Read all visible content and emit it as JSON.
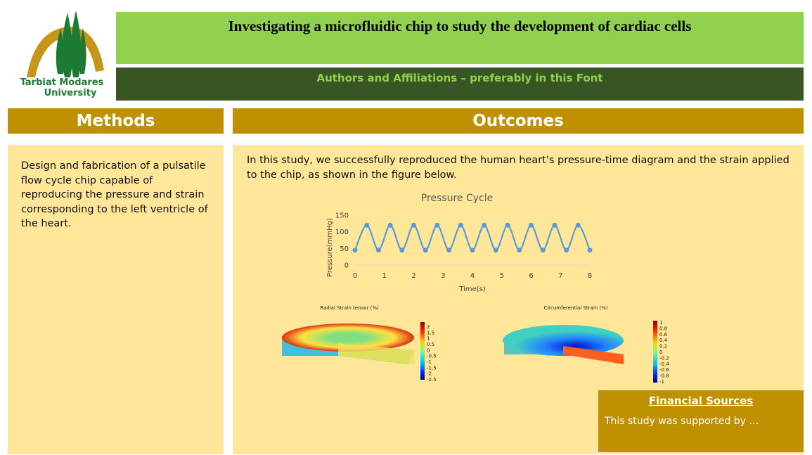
{
  "logo": {
    "line1": "Tarbiat Modares",
    "line2": "University"
  },
  "header": {
    "title": "Investigating a microfluidic chip to study the development of cardiac cells",
    "authors": "Authors and Affiliations – preferably in this Font"
  },
  "methods": {
    "heading": "Methods",
    "text": "Design and fabrication of a pulsatile flow cycle chip capable of reproducing the pressure and strain corresponding to the left ventricle of the heart."
  },
  "outcomes": {
    "heading": "Outcomes",
    "text": "In this study, we successfully reproduced the human heart's pressure-time diagram and the strain applied to the chip, as shown in the figure below.",
    "chart": {
      "type": "line",
      "title": "Pressure Cycle",
      "x_label": "Time(s)",
      "y_label": "Pressure(mmHg)",
      "x": [
        0,
        0.4,
        0.8,
        1.2,
        1.6,
        2.0,
        2.4,
        2.8,
        3.2,
        3.6,
        4.0,
        4.4,
        4.8,
        5.2,
        5.6,
        6.0,
        6.4,
        6.8,
        7.2,
        7.6,
        8.0
      ],
      "values": [
        45,
        120,
        45,
        120,
        45,
        120,
        45,
        120,
        45,
        120,
        45,
        120,
        45,
        120,
        45,
        120,
        45,
        120,
        45,
        120,
        45
      ],
      "xlim": [
        0,
        8
      ],
      "ylim": [
        0,
        150
      ],
      "xticks": [
        0,
        1,
        2,
        3,
        4,
        5,
        6,
        7,
        8
      ],
      "yticks": [
        0,
        50,
        100,
        150
      ],
      "color": "#5b9bd5"
    },
    "radial": {
      "title": "Radial Strain tensor (%)",
      "scale": [
        "2",
        "1.5",
        "1",
        "0.5",
        "0",
        "-0.5",
        "-1",
        "-1.5",
        "-2",
        "-2.5"
      ]
    },
    "circumferential": {
      "title": "Circumferential Strain (%)",
      "scale": [
        "1",
        "0.8",
        "0.6",
        "0.4",
        "0.2",
        "0",
        "-0.2",
        "-0.4",
        "-0.6",
        "-0.8",
        "-1"
      ]
    }
  },
  "financial": {
    "heading": "Financial Sources",
    "text": "This study was supported by …"
  }
}
